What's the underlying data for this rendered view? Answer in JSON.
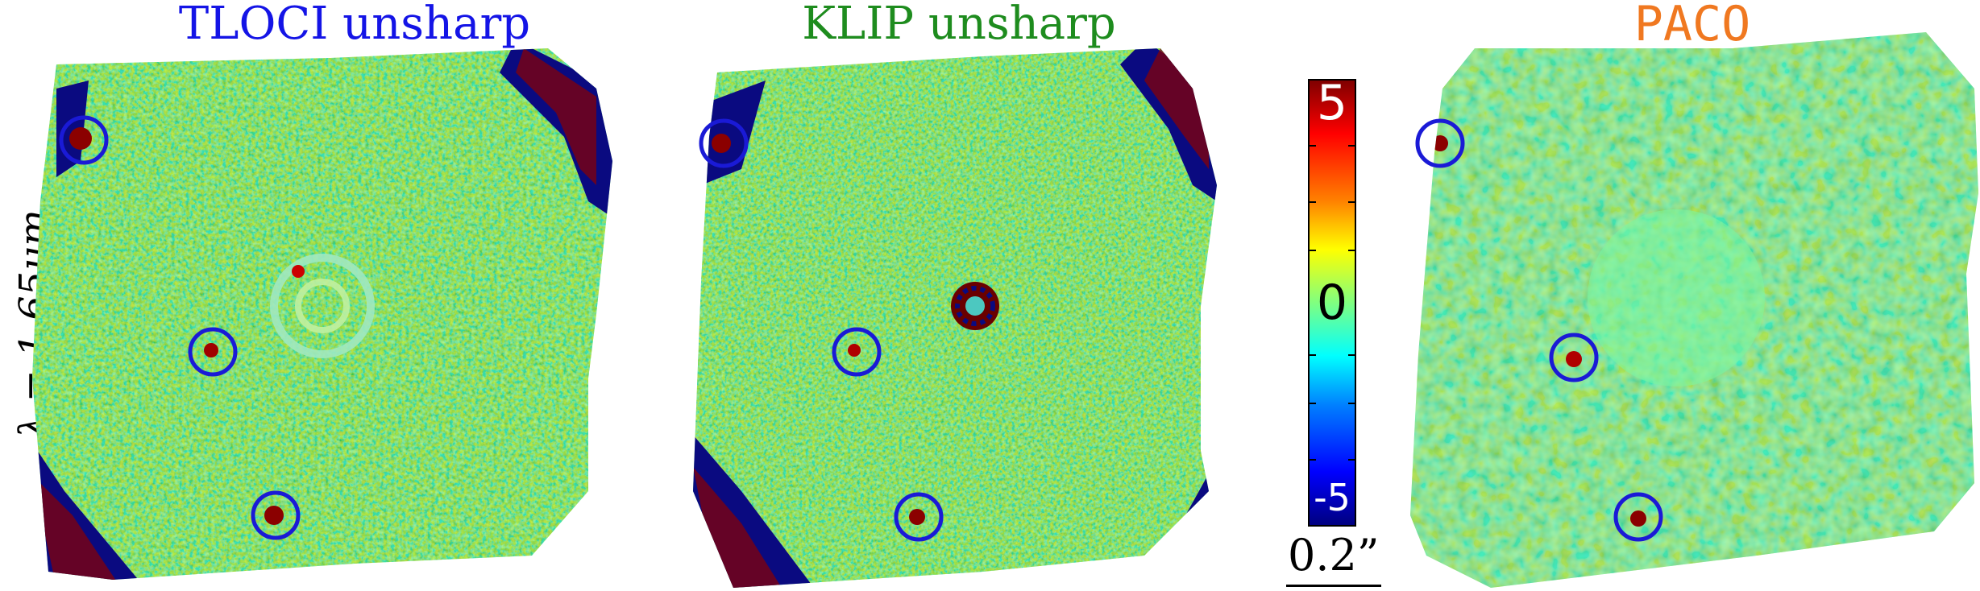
{
  "figure": {
    "row_label": "λ = 1.65μm",
    "scale_bar_label": "0.2”"
  },
  "panels": [
    {
      "id": "tloci",
      "title": "TLOCI unsharp",
      "title_color": "#1414e6"
    },
    {
      "id": "klip",
      "title": "KLIP unsharp",
      "title_color": "#1e8c1e"
    },
    {
      "id": "paco",
      "title": "PACO",
      "title_color": "#f07820"
    }
  ],
  "colorbar": {
    "max_label": "5",
    "mid_label": "0",
    "min_label": "-5",
    "colormap": [
      "#800000",
      "#ff0000",
      "#ff8000",
      "#ffff00",
      "#80ff80",
      "#00ffff",
      "#0080ff",
      "#0000ff",
      "#000080"
    ]
  },
  "colors": {
    "background_map": "#7cf5a0",
    "circle": "#1a1ad6"
  }
}
